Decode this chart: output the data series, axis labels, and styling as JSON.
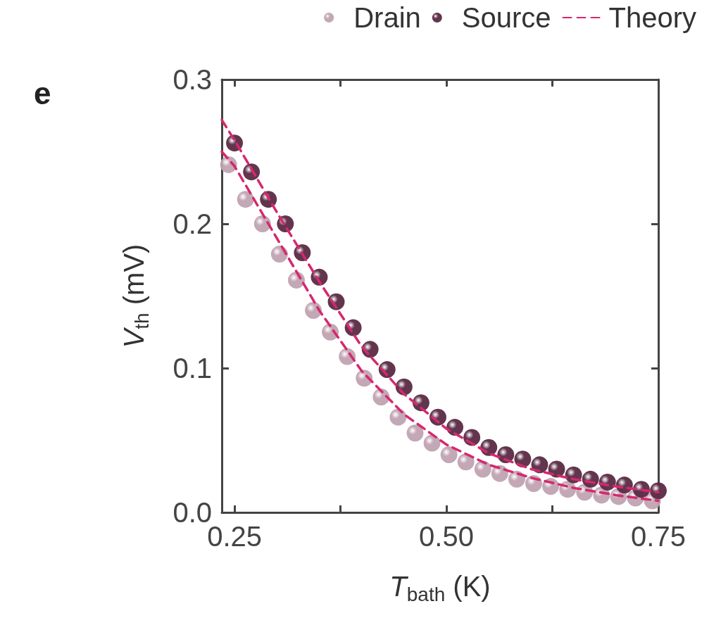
{
  "chart_data": {
    "type": "scatter",
    "xlabel": "T$_{bath}$ (K)",
    "ylabel": "V$_{th}$ (mV)",
    "annotations": [
      "e"
    ],
    "xlim": [
      0.235,
      0.75
    ],
    "xticks": [
      {
        "value": 0.25,
        "label": "0.25"
      },
      {
        "value": 0.375,
        "label": null
      },
      {
        "value": 0.5,
        "label": "0.50"
      },
      {
        "value": 0.625,
        "label": null
      },
      {
        "value": 0.75,
        "label": "0.75"
      }
    ],
    "ylim": [
      0,
      0.3
    ],
    "yticks": [
      {
        "value": 0,
        "label": "0.0"
      },
      {
        "value": 0.1,
        "label": "0.1"
      },
      {
        "value": 0.2,
        "label": "0.2"
      },
      {
        "value": 0.3,
        "label": "0.3"
      }
    ],
    "grid": false,
    "legend": "top right",
    "marker": "circle",
    "series": [
      {
        "name": "Drain",
        "color": "#c0a3b1",
        "x": [
          0.243,
          0.263,
          0.283,
          0.303,
          0.323,
          0.343,
          0.363,
          0.383,
          0.403,
          0.423,
          0.443,
          0.463,
          0.483,
          0.503,
          0.523,
          0.543,
          0.563,
          0.583,
          0.603,
          0.623,
          0.643,
          0.663,
          0.683,
          0.703,
          0.723,
          0.743
        ],
        "values": [
          0.241,
          0.217,
          0.2,
          0.179,
          0.161,
          0.14,
          0.125,
          0.108,
          0.093,
          0.08,
          0.066,
          0.055,
          0.048,
          0.04,
          0.035,
          0.03,
          0.027,
          0.023,
          0.02,
          0.018,
          0.016,
          0.014,
          0.012,
          0.011,
          0.01,
          0.008
        ]
      },
      {
        "name": "Source",
        "color": "#5a2a44",
        "x": [
          0.25,
          0.27,
          0.29,
          0.31,
          0.33,
          0.35,
          0.37,
          0.39,
          0.41,
          0.43,
          0.45,
          0.47,
          0.49,
          0.51,
          0.53,
          0.55,
          0.57,
          0.59,
          0.61,
          0.63,
          0.65,
          0.67,
          0.69,
          0.71,
          0.73,
          0.75
        ],
        "values": [
          0.256,
          0.236,
          0.217,
          0.2,
          0.18,
          0.163,
          0.146,
          0.128,
          0.113,
          0.099,
          0.087,
          0.076,
          0.066,
          0.059,
          0.052,
          0.045,
          0.04,
          0.037,
          0.033,
          0.03,
          0.026,
          0.023,
          0.021,
          0.019,
          0.016,
          0.015
        ]
      },
      {
        "name": "Theory",
        "type": "line",
        "marker": "none",
        "line_style": "dashed",
        "color": "#d6286e",
        "x": [
          0.235,
          0.25,
          0.3,
          0.35,
          0.4,
          0.45,
          0.5,
          0.55,
          0.6,
          0.65,
          0.7,
          0.75
        ],
        "values": [
          0.272,
          0.258,
          0.208,
          0.16,
          0.115,
          0.082,
          0.058,
          0.041,
          0.03,
          0.023,
          0.018,
          0.014
        ]
      },
      {
        "type": "line",
        "marker": "none",
        "line_style": "dashed",
        "color": "#d6286e",
        "x": [
          0.235,
          0.25,
          0.3,
          0.35,
          0.4,
          0.45,
          0.5,
          0.55,
          0.6,
          0.65,
          0.7,
          0.75
        ],
        "values": [
          0.25,
          0.24,
          0.19,
          0.14,
          0.098,
          0.068,
          0.047,
          0.033,
          0.024,
          0.017,
          0.012,
          0.008
        ]
      }
    ]
  }
}
